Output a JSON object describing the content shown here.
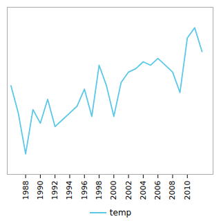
{
  "chart_data": {
    "type": "line",
    "x": [
      1986,
      1987,
      1988,
      1989,
      1990,
      1991,
      1992,
      1993,
      1994,
      1995,
      1996,
      1997,
      1998,
      1999,
      2000,
      2001,
      2002,
      2003,
      2004,
      2005,
      2006,
      2007,
      2008,
      2009,
      2010,
      2011,
      2012
    ],
    "series": [
      {
        "name": "temp",
        "color": "#5bc8e8",
        "values": [
          26.4,
          25.6,
          24.4,
          25.7,
          25.3,
          26.0,
          25.2,
          25.4,
          25.6,
          25.8,
          26.3,
          25.5,
          27.0,
          26.4,
          25.5,
          26.5,
          26.8,
          26.9,
          27.1,
          27.0,
          27.2,
          27.0,
          26.8,
          26.2,
          27.8,
          28.1,
          27.4
        ]
      }
    ],
    "xlim": [
      1985.5,
      2013.5
    ],
    "xticks": [
      1988,
      1990,
      1992,
      1994,
      1996,
      1998,
      2000,
      2002,
      2004,
      2006,
      2008,
      2010
    ],
    "ylim": [
      23.8,
      28.7
    ],
    "yticks": [],
    "tick_labels": "x",
    "grid": false,
    "legend": "bottom"
  }
}
